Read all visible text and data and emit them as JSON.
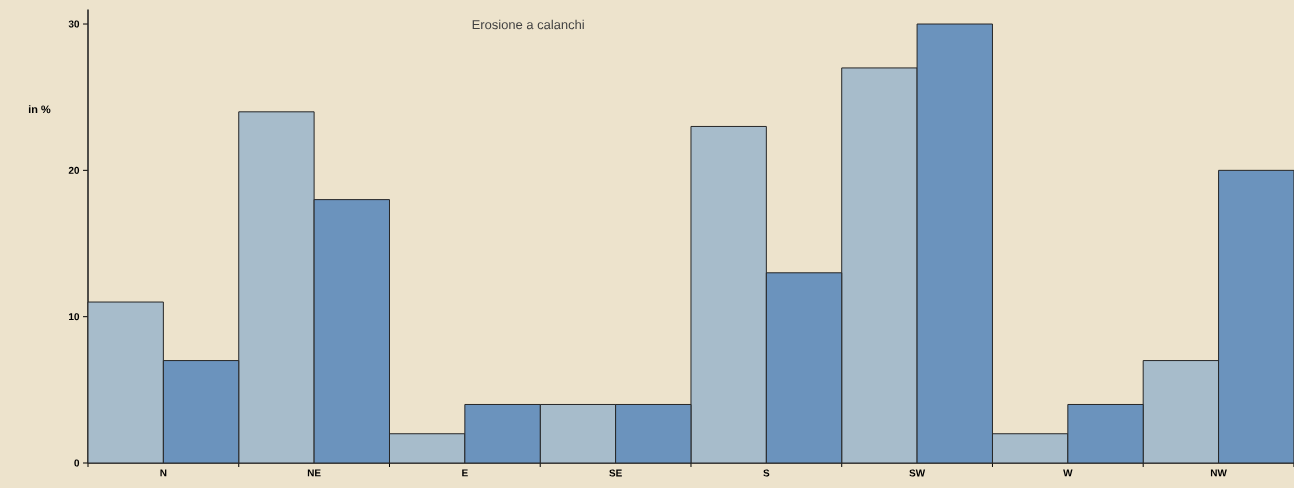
{
  "chart_data": {
    "type": "bar",
    "title": "Erosione a calanchi",
    "ylabel": "in %",
    "categories": [
      "N",
      "NE",
      "E",
      "SE",
      "S",
      "SW",
      "W",
      "NW"
    ],
    "series": [
      {
        "color": "#a7bccb",
        "values": [
          11,
          24,
          2,
          4,
          23,
          27,
          2,
          7
        ]
      },
      {
        "color": "#6b93bd",
        "values": [
          7,
          18,
          4,
          4,
          13,
          30,
          4,
          20
        ]
      }
    ],
    "ylim": [
      0,
      31
    ],
    "yticks": [
      0,
      10,
      20,
      30
    ]
  }
}
